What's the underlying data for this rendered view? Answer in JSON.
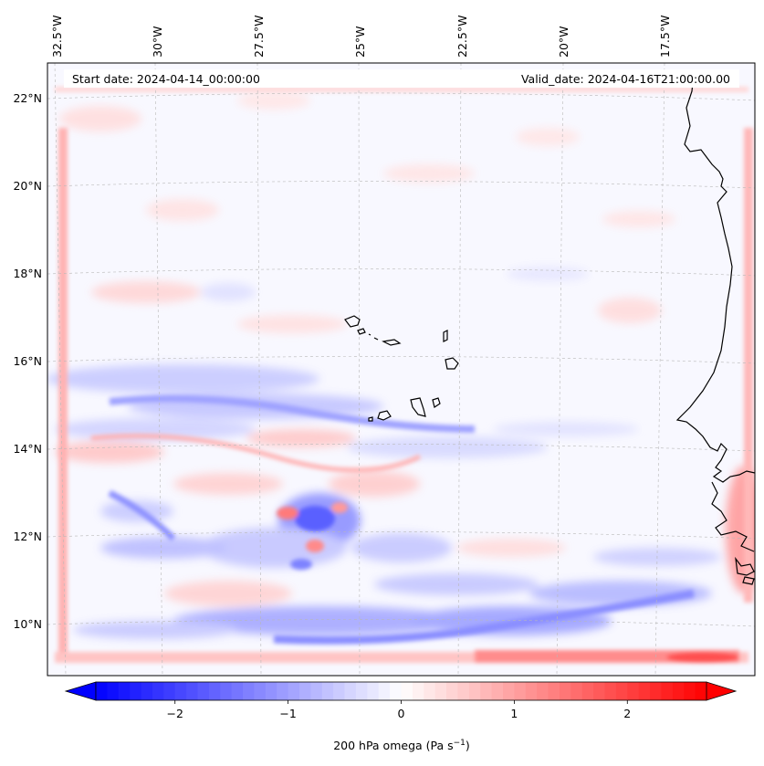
{
  "header": {
    "start_date": "Start date: 2024-04-14_00:00:00",
    "valid_date": "Valid_date: 2024-04-16T21:00:00.00"
  },
  "map": {
    "lon_labels": [
      "32.5°W",
      "30°W",
      "27.5°W",
      "25°W",
      "22.5°W",
      "20°W",
      "17.5°W"
    ],
    "lat_labels": [
      "22°N",
      "20°N",
      "18°N",
      "16°N",
      "14°N",
      "12°N",
      "10°N"
    ],
    "field": "200 hPa omega",
    "features": [
      "coastline-west-africa",
      "cape-verde-islands"
    ]
  },
  "colorbar": {
    "label": "200 hPa omega (Pa s",
    "label_unit_sup": "−1",
    "label_close": ")",
    "min": -2.7,
    "max": 2.7,
    "ticks": [
      -2,
      -1,
      0,
      1,
      2
    ],
    "tick_labels": [
      "−2",
      "−1",
      "0",
      "1",
      "2"
    ],
    "colormap": "bwr",
    "extend": "both"
  },
  "colors": {
    "negative": "#0000ff",
    "neutral": "#ffffff",
    "positive": "#ff0000",
    "coast": "#000000",
    "grid": "#b0b0b0"
  }
}
